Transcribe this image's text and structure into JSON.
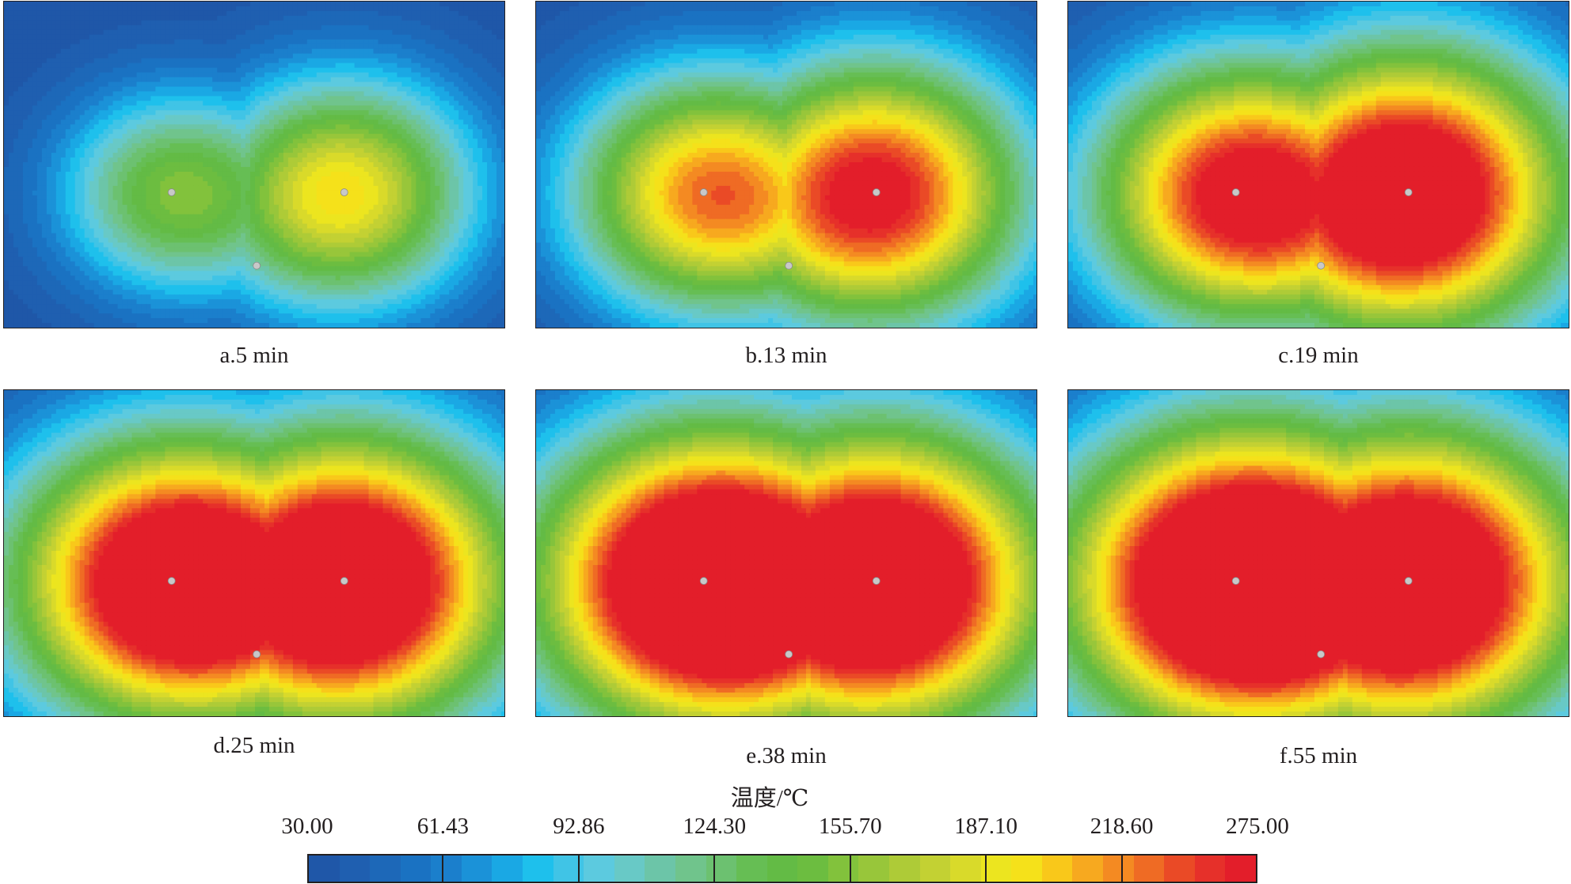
{
  "chart_data": [
    {
      "type": "heatmap",
      "caption": "a.5 min",
      "time_min": 5,
      "sources": [
        {
          "x": 0.335,
          "y": 0.585,
          "t": 130
        },
        {
          "x": 0.68,
          "y": 0.585,
          "t": 175
        }
      ],
      "probe_points": 3
    },
    {
      "type": "heatmap",
      "caption": "b.13 min",
      "time_min": 13,
      "sources": [
        {
          "x": 0.335,
          "y": 0.585,
          "t": 185
        },
        {
          "x": 0.68,
          "y": 0.585,
          "t": 225
        }
      ],
      "probe_points": 3
    },
    {
      "type": "heatmap",
      "caption": "c.19 min",
      "time_min": 19,
      "sources": [
        {
          "x": 0.335,
          "y": 0.585,
          "t": 215
        },
        {
          "x": 0.68,
          "y": 0.585,
          "t": 260
        }
      ],
      "probe_points": 3
    },
    {
      "type": "heatmap",
      "caption": "d.25 min",
      "time_min": 25,
      "sources": [
        {
          "x": 0.335,
          "y": 0.585,
          "t": 250
        },
        {
          "x": 0.68,
          "y": 0.585,
          "t": 270
        }
      ],
      "probe_points": 3
    },
    {
      "type": "heatmap",
      "caption": "e.38 min",
      "time_min": 38,
      "sources": [
        {
          "x": 0.335,
          "y": 0.585,
          "t": 270
        },
        {
          "x": 0.68,
          "y": 0.585,
          "t": 275
        }
      ],
      "probe_points": 3
    },
    {
      "type": "heatmap",
      "caption": "f.55 min",
      "time_min": 55,
      "sources": [
        {
          "x": 0.335,
          "y": 0.585,
          "t": 275
        },
        {
          "x": 0.68,
          "y": 0.585,
          "t": 275
        }
      ],
      "probe_points": 3
    }
  ],
  "legend": {
    "title": "温度/℃",
    "min": 30.0,
    "max": 275.0,
    "ticks": [
      "30.00",
      "61.43",
      "92.86",
      "124.30",
      "155.70",
      "187.10",
      "218.60",
      "275.00"
    ],
    "colors": [
      "#1f57a8",
      "#1f5fb0",
      "#1d68b8",
      "#1a72c2",
      "#1b7fcc",
      "#1b92d8",
      "#1aa8e4",
      "#1ec0ec",
      "#40c4e6",
      "#5ccadf",
      "#68c9c6",
      "#6cc5a8",
      "#70c48c",
      "#6cc170",
      "#66be54",
      "#63bb45",
      "#6cbd40",
      "#82c23c",
      "#98c63a",
      "#aecb37",
      "#c3d133",
      "#d9da2a",
      "#ece51f",
      "#f5e11a",
      "#f9c81a",
      "#f7a91f",
      "#f48a22",
      "#ef6b24",
      "#ea4a26",
      "#e6302a",
      "#e31e2a"
    ]
  }
}
